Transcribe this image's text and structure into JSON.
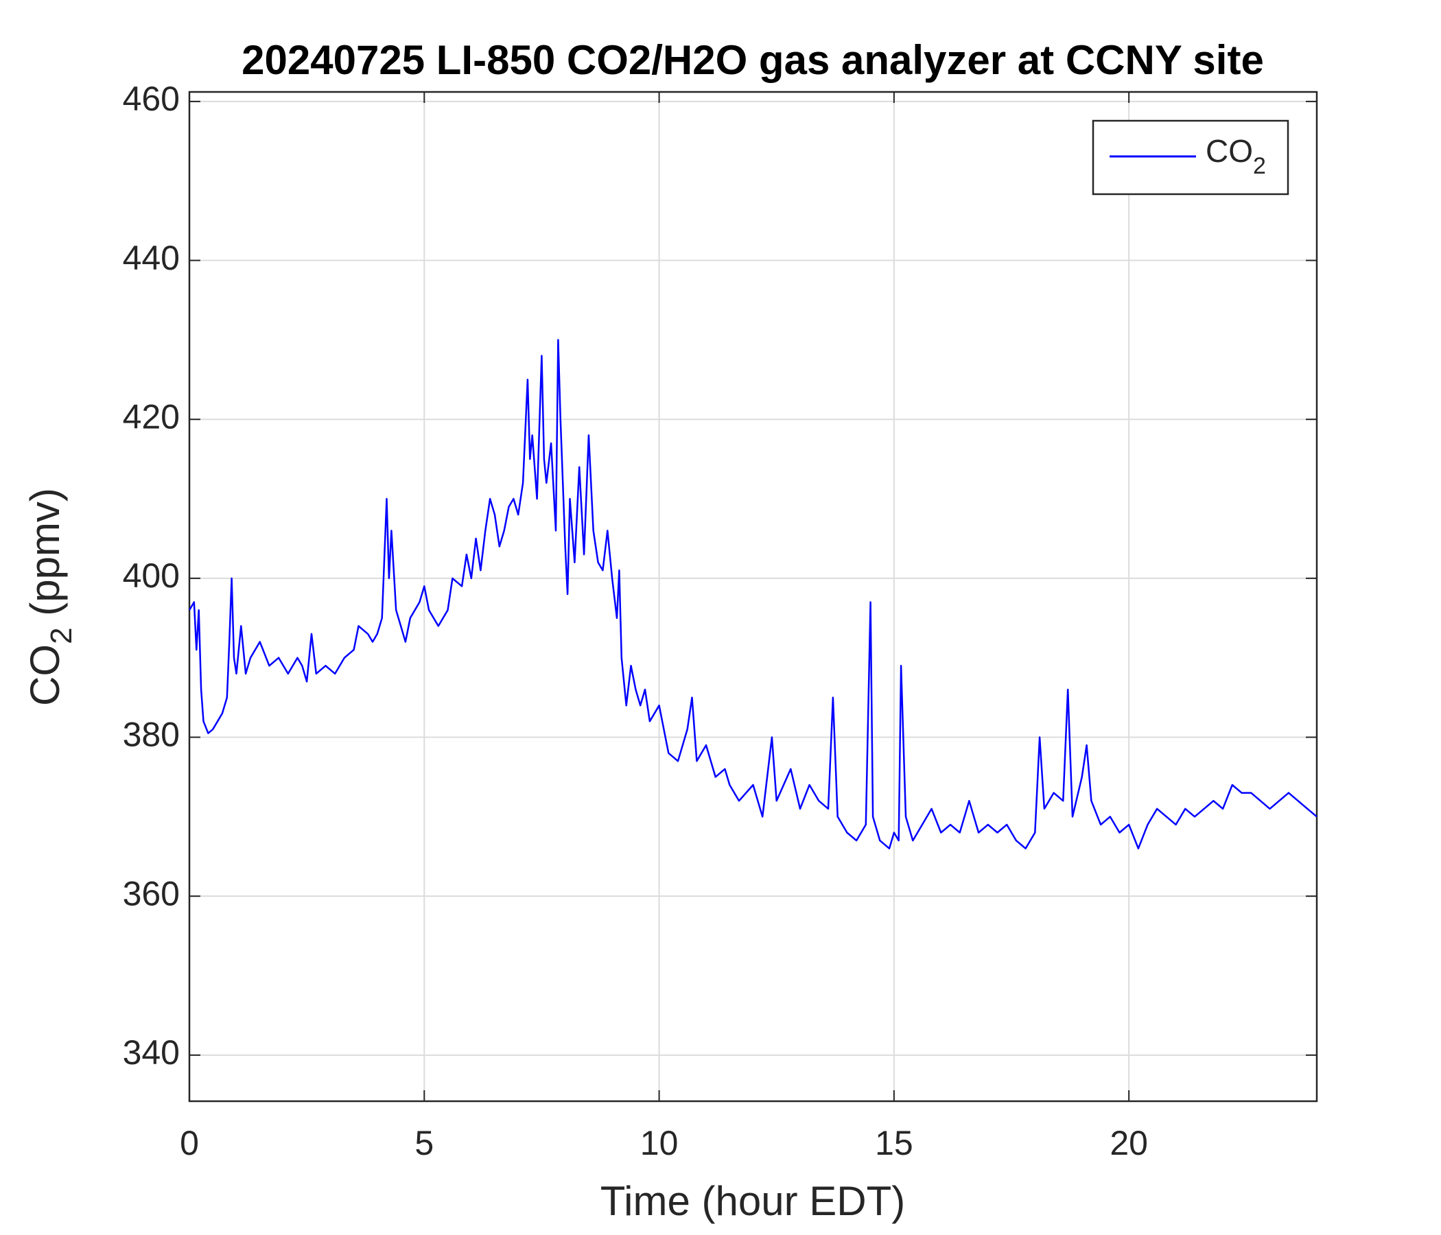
{
  "chart_data": {
    "type": "line",
    "title": "20240725 LI-850 CO2/H2O gas analyzer at CCNY site",
    "x_label": "Time (hour EDT)",
    "y_label": [
      "CO",
      "2",
      " (ppmv)"
    ],
    "xlim": [
      0,
      24
    ],
    "xticks": [
      0,
      5,
      10,
      15,
      20
    ],
    "ylim": [
      334.2,
      461.2
    ],
    "yticks": [
      340,
      360,
      380,
      400,
      420,
      440,
      460
    ],
    "grid": true,
    "legend": "top-right",
    "series": [
      {
        "name": [
          "CO",
          "2"
        ],
        "color": "#0000ff",
        "x": [
          0,
          0.1,
          0.15,
          0.2,
          0.25,
          0.3,
          0.4,
          0.5,
          0.6,
          0.7,
          0.8,
          0.85,
          0.9,
          0.95,
          1.0,
          1.1,
          1.2,
          1.3,
          1.5,
          1.7,
          1.9,
          2.1,
          2.3,
          2.4,
          2.5,
          2.6,
          2.7,
          2.9,
          3.1,
          3.3,
          3.5,
          3.6,
          3.8,
          3.9,
          4.0,
          4.1,
          4.2,
          4.25,
          4.3,
          4.4,
          4.5,
          4.6,
          4.7,
          4.9,
          5.0,
          5.1,
          5.3,
          5.5,
          5.6,
          5.8,
          5.9,
          6.0,
          6.1,
          6.2,
          6.3,
          6.4,
          6.5,
          6.6,
          6.7,
          6.8,
          6.9,
          7.0,
          7.1,
          7.2,
          7.25,
          7.3,
          7.4,
          7.5,
          7.55,
          7.6,
          7.7,
          7.8,
          7.85,
          7.9,
          8.0,
          8.05,
          8.1,
          8.2,
          8.3,
          8.4,
          8.5,
          8.6,
          8.7,
          8.8,
          8.9,
          9.0,
          9.1,
          9.15,
          9.2,
          9.3,
          9.4,
          9.5,
          9.6,
          9.7,
          9.8,
          10.0,
          10.1,
          10.2,
          10.4,
          10.6,
          10.7,
          10.8,
          11.0,
          11.2,
          11.4,
          11.5,
          11.7,
          12.0,
          12.2,
          12.4,
          12.5,
          12.8,
          13.0,
          13.2,
          13.4,
          13.6,
          13.7,
          13.8,
          14.0,
          14.2,
          14.4,
          14.5,
          14.55,
          14.7,
          14.9,
          15.0,
          15.1,
          15.15,
          15.25,
          15.4,
          15.6,
          15.8,
          16.0,
          16.2,
          16.4,
          16.6,
          16.8,
          17.0,
          17.2,
          17.4,
          17.6,
          17.8,
          18.0,
          18.1,
          18.2,
          18.4,
          18.6,
          18.7,
          18.8,
          19.0,
          19.1,
          19.2,
          19.4,
          19.6,
          19.8,
          20.0,
          20.2,
          20.4,
          20.6,
          20.8,
          21.0,
          21.2,
          21.4,
          21.6,
          21.8,
          22.0,
          22.2,
          22.4,
          22.6,
          22.8,
          23.0,
          23.2,
          23.4,
          23.6,
          23.8,
          24.0
        ],
        "values": [
          396,
          397,
          391,
          396,
          386,
          382,
          380.5,
          381,
          382,
          383,
          385,
          392,
          400,
          390,
          388,
          394,
          388,
          390,
          392,
          389,
          390,
          388,
          390,
          389,
          387,
          393,
          388,
          389,
          388,
          390,
          391,
          394,
          393,
          392,
          393,
          395,
          410,
          400,
          406,
          396,
          394,
          392,
          395,
          397,
          399,
          396,
          394,
          396,
          400,
          399,
          403,
          400,
          405,
          401,
          406,
          410,
          408,
          404,
          406,
          409,
          410,
          408,
          412,
          425,
          415,
          418,
          410,
          428,
          415,
          412,
          417,
          406,
          430,
          420,
          404,
          398,
          410,
          402,
          414,
          403,
          418,
          406,
          402,
          401,
          406,
          400,
          395,
          401,
          390,
          384,
          389,
          386,
          384,
          386,
          382,
          384,
          381,
          378,
          377,
          381,
          385,
          377,
          379,
          375,
          376,
          374,
          372,
          374,
          370,
          380,
          372,
          376,
          371,
          374,
          372,
          371,
          385,
          370,
          368,
          367,
          369,
          397,
          370,
          367,
          366,
          368,
          367,
          389,
          370,
          367,
          369,
          371,
          368,
          369,
          368,
          372,
          368,
          369,
          368,
          369,
          367,
          366,
          368,
          380,
          371,
          373,
          372,
          386,
          370,
          375,
          379,
          372,
          369,
          370,
          368,
          369,
          366,
          369,
          371,
          370,
          369,
          371,
          370,
          371,
          372,
          371,
          374,
          373,
          373,
          372,
          371,
          372,
          373,
          372,
          371,
          370
        ]
      }
    ]
  }
}
